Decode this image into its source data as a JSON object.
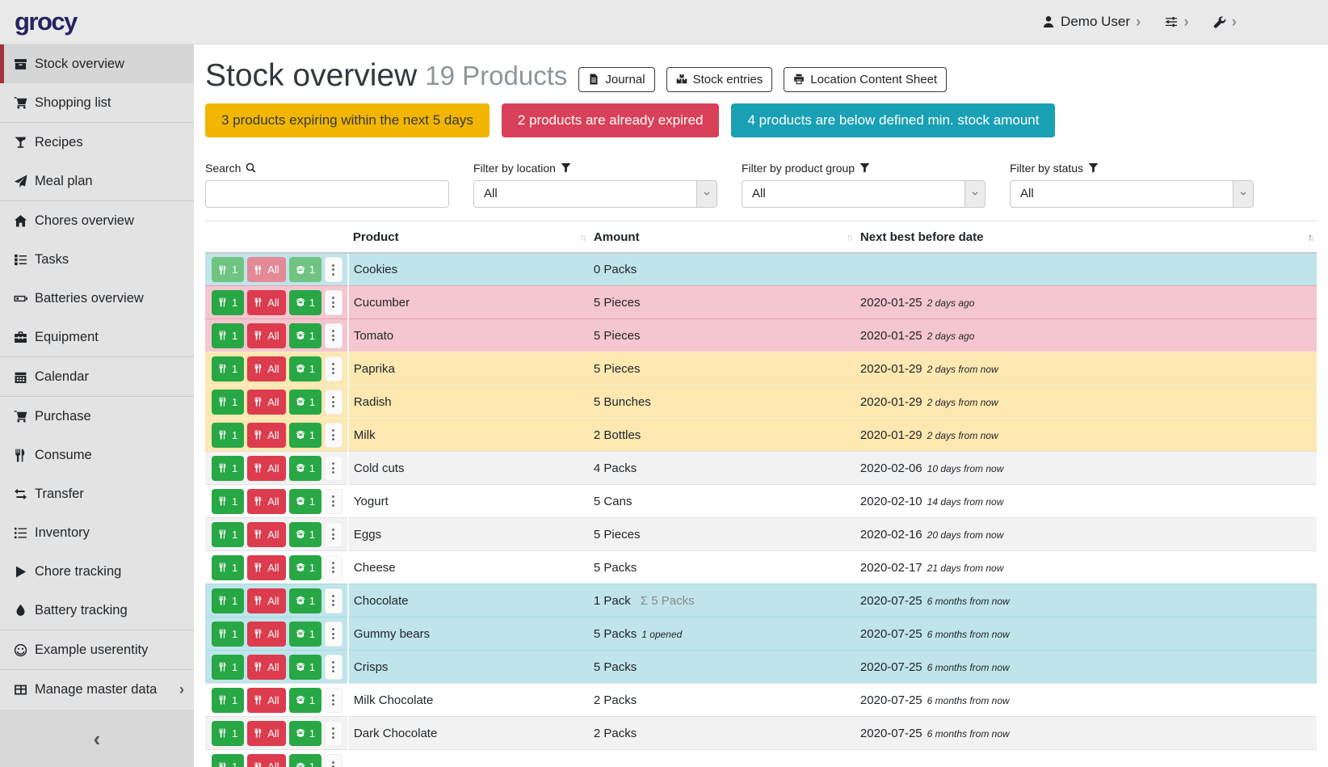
{
  "navbar": {
    "logo": "grocy",
    "user_label": "Demo User"
  },
  "sidebar": {
    "collapse_icon": "‹",
    "items": [
      {
        "label": "Stock overview",
        "icon": "stock",
        "active": true
      },
      {
        "label": "Shopping list",
        "icon": "cart"
      },
      {
        "label": "Recipes",
        "icon": "recipes",
        "sep_before": true
      },
      {
        "label": "Meal plan",
        "icon": "paper-plane"
      },
      {
        "label": "Chores overview",
        "icon": "home",
        "sep_before": true
      },
      {
        "label": "Tasks",
        "icon": "tasks"
      },
      {
        "label": "Batteries overview",
        "icon": "battery"
      },
      {
        "label": "Equipment",
        "icon": "toolbox"
      },
      {
        "label": "Calendar",
        "icon": "calendar",
        "sep_before": true
      },
      {
        "label": "Purchase",
        "icon": "cart",
        "sep_before": true
      },
      {
        "label": "Consume",
        "icon": "utensils"
      },
      {
        "label": "Transfer",
        "icon": "exchange"
      },
      {
        "label": "Inventory",
        "icon": "list"
      },
      {
        "label": "Chore tracking",
        "icon": "play"
      },
      {
        "label": "Battery tracking",
        "icon": "tint"
      },
      {
        "label": "Example userentity",
        "icon": "smile",
        "sep_before": true
      },
      {
        "label": "Manage master data",
        "icon": "table",
        "sep_before": true,
        "chevron": true
      }
    ]
  },
  "page": {
    "title": "Stock overview",
    "subtitle": "19 Products",
    "actions": [
      {
        "label": "Journal",
        "icon": "file"
      },
      {
        "label": "Stock entries",
        "icon": "boxes"
      },
      {
        "label": "Location Content Sheet",
        "icon": "print"
      }
    ]
  },
  "banners": [
    {
      "name": "expiring-soon-banner",
      "text": "3 products expiring within the next 5 days",
      "bg": "#f2b500",
      "fg": "#343a40"
    },
    {
      "name": "expired-banner",
      "text": "2 products are already expired",
      "bg": "#d9405a",
      "fg": "#ffffff"
    },
    {
      "name": "below-min-stock-banner",
      "text": "4 products are below defined min. stock amount",
      "bg": "#1aa0b5",
      "fg": "#ffffff"
    }
  ],
  "filters": [
    {
      "label": "Search",
      "icon": "search",
      "type": "input",
      "value": ""
    },
    {
      "label": "Filter by location",
      "icon": "filter",
      "type": "select",
      "value": "All"
    },
    {
      "label": "Filter by product group",
      "icon": "filter",
      "type": "select",
      "value": "All"
    },
    {
      "label": "Filter by status",
      "icon": "filter",
      "type": "select",
      "value": "All"
    }
  ],
  "table": {
    "columns": [
      {
        "label": "Product"
      },
      {
        "label": "Amount"
      },
      {
        "label": "Next best before date"
      }
    ],
    "sort_active_column": 2,
    "row_actions": {
      "consume_one": "1",
      "consume_all": "All",
      "open_one": "1"
    },
    "rows": [
      {
        "product": "Cookies",
        "amount": "0 Packs",
        "date": "",
        "date_rel": "",
        "color": "cyan",
        "muted": true
      },
      {
        "product": "Cucumber",
        "amount": "5 Pieces",
        "date": "2020-01-25",
        "date_rel": "2 days ago",
        "color": "pink"
      },
      {
        "product": "Tomato",
        "amount": "5 Pieces",
        "date": "2020-01-25",
        "date_rel": "2 days ago",
        "color": "pink"
      },
      {
        "product": "Paprika",
        "amount": "5 Pieces",
        "date": "2020-01-29",
        "date_rel": "2 days from now",
        "color": "yellow"
      },
      {
        "product": "Radish",
        "amount": "5 Bunches",
        "date": "2020-01-29",
        "date_rel": "2 days from now",
        "color": "yellow"
      },
      {
        "product": "Milk",
        "amount": "2 Bottles",
        "date": "2020-01-29",
        "date_rel": "2 days from now",
        "color": "yellow"
      },
      {
        "product": "Cold cuts",
        "amount": "4 Packs",
        "date": "2020-02-06",
        "date_rel": "10 days from now",
        "color": "stripe"
      },
      {
        "product": "Yogurt",
        "amount": "5 Cans",
        "date": "2020-02-10",
        "date_rel": "14 days from now",
        "color": "white"
      },
      {
        "product": "Eggs",
        "amount": "5 Pieces",
        "date": "2020-02-16",
        "date_rel": "20 days from now",
        "color": "stripe"
      },
      {
        "product": "Cheese",
        "amount": "5 Packs",
        "date": "2020-02-17",
        "date_rel": "21 days from now",
        "color": "white"
      },
      {
        "product": "Chocolate",
        "amount": "1 Pack",
        "amount_sum": "Σ 5 Packs",
        "date": "2020-07-25",
        "date_rel": "6 months from now",
        "color": "cyan"
      },
      {
        "product": "Gummy bears",
        "amount": "5 Packs",
        "amount_note": "1 opened",
        "date": "2020-07-25",
        "date_rel": "6 months from now",
        "color": "cyan"
      },
      {
        "product": "Crisps",
        "amount": "5 Packs",
        "date": "2020-07-25",
        "date_rel": "6 months from now",
        "color": "cyan"
      },
      {
        "product": "Milk Chocolate",
        "amount": "2 Packs",
        "date": "2020-07-25",
        "date_rel": "6 months from now",
        "color": "white"
      },
      {
        "product": "Dark Chocolate",
        "amount": "2 Packs",
        "date": "2020-07-25",
        "date_rel": "6 months from now",
        "color": "stripe"
      },
      {
        "product": "",
        "amount": "",
        "date": "",
        "date_rel": "",
        "color": "white",
        "partial": true
      }
    ]
  },
  "colors": {
    "btn-green": "#28a745",
    "btn-green-muted": "#6fc481",
    "btn-red": "#dc3c4e",
    "btn-red-muted": "#e28a96",
    "row-cyan": "#bfe5eb",
    "row-cyan-border": "#a5d9e2",
    "row-pink": "#f4c6cf",
    "row-pink-border": "#eca4b2",
    "row-yellow": "#fce8b0",
    "row-yellow-border": "#f9f0cf",
    "row-stripe": "#f2f2f2",
    "row-border": "#e2e2e2",
    "logo": "#272260",
    "active-border": "#a3323f"
  }
}
